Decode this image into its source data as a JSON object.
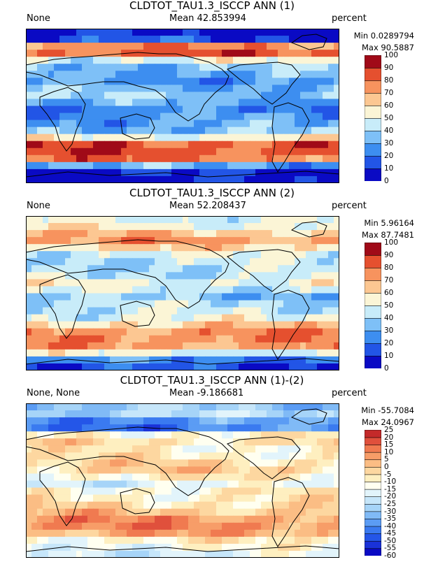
{
  "panels": [
    {
      "title": "CLDTOT_TAU1.3_ISCCP ANN (1)",
      "left_label": "None",
      "mean_label": "Mean 42.853994",
      "units": "percent",
      "min_label": "Min 0.0289794",
      "max_label": "Max 90.5887"
    },
    {
      "title": "CLDTOT_TAU1.3_ISCCP ANN (2)",
      "left_label": "None",
      "mean_label": "Mean 52.208437",
      "units": "percent",
      "min_label": "Min 5.96164",
      "max_label": "Max 87.7481"
    },
    {
      "title": "CLDTOT_TAU1.3_ISCCP ANN (1)-(2)",
      "left_label": "None, None",
      "mean_label": "Mean -9.186681",
      "units": "percent",
      "min_label": "Min -55.7084",
      "max_label": "Max 24.0967"
    }
  ],
  "chart_data": [
    {
      "type": "heatmap",
      "title": "CLDTOT_TAU1.3_ISCCP ANN (1)",
      "units": "percent",
      "mean": 42.853994,
      "min": 0.0289794,
      "max": 90.5887,
      "colorbar_ticks": [
        "100",
        "90",
        "80",
        "70",
        "60",
        "50",
        "40",
        "30",
        "20",
        "10",
        "0"
      ],
      "colors": [
        "#0a0ac4",
        "#2255e6",
        "#3d8ef0",
        "#7ec0f7",
        "#c8ecf9",
        "#fbf5d6",
        "#fcc792",
        "#f7935e",
        "#e5502f",
        "#a00a18"
      ],
      "zonal_levels": [
        0.06,
        0.12,
        0.75,
        0.82,
        0.5,
        0.36,
        0.32,
        0.28,
        0.33,
        0.38,
        0.3,
        0.22,
        0.28,
        0.3,
        0.35,
        0.55,
        0.85,
        0.86,
        0.8,
        0.3,
        0.08,
        0.06
      ]
    },
    {
      "type": "heatmap",
      "title": "CLDTOT_TAU1.3_ISCCP ANN (2)",
      "units": "percent",
      "mean": 52.208437,
      "min": 5.96164,
      "max": 87.7481,
      "colorbar_ticks": [
        "100",
        "90",
        "80",
        "70",
        "60",
        "50",
        "40",
        "30",
        "20",
        "10",
        "0"
      ],
      "colors": [
        "#0a0ac4",
        "#2255e6",
        "#3d8ef0",
        "#7ec0f7",
        "#c8ecf9",
        "#fbf5d6",
        "#fcc792",
        "#f7935e",
        "#e5502f",
        "#a00a18"
      ],
      "zonal_levels": [
        0.5,
        0.55,
        0.66,
        0.72,
        0.6,
        0.48,
        0.44,
        0.42,
        0.45,
        0.52,
        0.46,
        0.36,
        0.42,
        0.44,
        0.5,
        0.62,
        0.76,
        0.78,
        0.74,
        0.5,
        0.22,
        0.12
      ]
    },
    {
      "type": "heatmap",
      "title": "CLDTOT_TAU1.3_ISCCP ANN (1)-(2)",
      "units": "percent",
      "mean": -9.186681,
      "min": -55.7084,
      "max": 24.0967,
      "colorbar_ticks": [
        "25",
        "20",
        "15",
        "10",
        "5",
        "0",
        "-5",
        "-10",
        "-15",
        "-20",
        "-25",
        "-30",
        "-35",
        "-40",
        "-45",
        "-50",
        "-55",
        "-60"
      ],
      "colors": [
        "#0a0ac4",
        "#1a32d8",
        "#2456e8",
        "#3a7af0",
        "#5b9cf4",
        "#80baf6",
        "#a6d4f8",
        "#c6e6fa",
        "#e2f4fb",
        "#fffff0",
        "#feefc0",
        "#fdd7a0",
        "#fbbd84",
        "#f79d68",
        "#f07a50",
        "#e0503c",
        "#c42a2a"
      ],
      "zonal_levels": [
        0.35,
        0.4,
        0.25,
        0.22,
        0.6,
        0.66,
        0.6,
        0.62,
        0.66,
        0.68,
        0.6,
        0.5,
        0.6,
        0.62,
        0.66,
        0.72,
        0.8,
        0.82,
        0.76,
        0.6,
        0.55,
        0.5
      ]
    }
  ]
}
